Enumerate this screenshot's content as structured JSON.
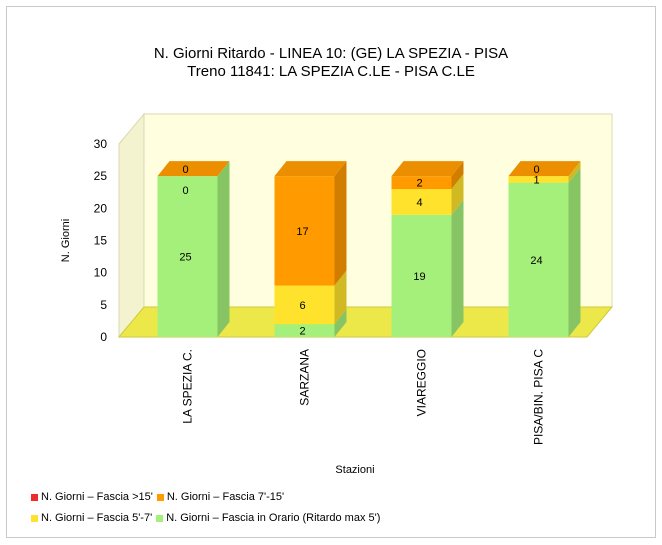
{
  "chart_data": {
    "type": "bar",
    "stacked": true,
    "three_d": true,
    "title": "N. Giorni Ritardo - LINEA 10: (GE) LA SPEZIA - PISA",
    "subtitle": "Treno 11841: LA SPEZIA C.LE - PISA C.LE",
    "xlabel": "Stazioni",
    "ylabel": "N. Giorni",
    "ylim": [
      0,
      30
    ],
    "yticks": [
      "0",
      "5",
      "10",
      "15",
      "20",
      "25",
      "30"
    ],
    "categories": [
      "LA SPEZIA C.",
      "SARZANA",
      "VIAREGGIO",
      "PISA/BIN. PISA C"
    ],
    "series": [
      {
        "name": "N. Giorni – Fascia in Orario (Ritardo max 5')",
        "color": "#a5f07a",
        "values": [
          25,
          2,
          19,
          24
        ]
      },
      {
        "name": "N. Giorni – Fascia 5'-7'",
        "color": "#ffe22b",
        "values": [
          0,
          6,
          4,
          1
        ]
      },
      {
        "name": "N. Giorni – Fascia 7'-15'",
        "color": "#ff9a00",
        "values": [
          0,
          17,
          2,
          0
        ]
      },
      {
        "name": "N. Giorni – Fascia >15'",
        "color": "#ef2b2b",
        "values": [
          0,
          0,
          0,
          0
        ]
      }
    ],
    "data_labels": [
      [
        "25",
        "0",
        "0"
      ],
      [
        "2",
        "6",
        "17"
      ],
      [
        "19",
        "4",
        "2"
      ],
      [
        "24",
        "1",
        "0"
      ]
    ],
    "legend_position": "bottom-left",
    "grid": false,
    "wall_color": "#ffffe0",
    "floor_color": "#ede84a"
  },
  "legend": {
    "row1": [
      {
        "label": "N. Giorni – Fascia >15'",
        "color": "#ef2b2b"
      },
      {
        "label": "N. Giorni – Fascia 7'-15'",
        "color": "#ff9a00"
      }
    ],
    "row2": [
      {
        "label": "N. Giorni – Fascia 5'-7'",
        "color": "#ffe22b"
      },
      {
        "label": "N. Giorni – Fascia in Orario (Ritardo max 5')",
        "color": "#a5f07a"
      }
    ]
  }
}
